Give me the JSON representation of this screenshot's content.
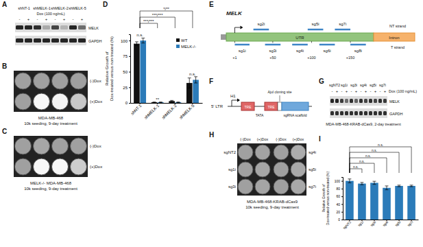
{
  "panels": {
    "A": {
      "letter": "A",
      "lanes": [
        "shNT-1",
        "shMELK-1",
        "shMELK-2",
        "shMELK-5"
      ],
      "dox_label": "Dox (100 ng/mL)",
      "dox": [
        "-",
        "+"
      ],
      "bands": [
        {
          "name": "MELK",
          "intensity": [
            0.9,
            0.9,
            0.85,
            0.25,
            0.75,
            0.2,
            0.9,
            0.55
          ]
        },
        {
          "name": "GAPDH",
          "intensity": [
            0.9,
            0.9,
            0.9,
            0.9,
            0.9,
            0.9,
            0.9,
            0.9
          ]
        }
      ]
    },
    "B": {
      "letter": "B",
      "rows": [
        "(-)Dox",
        "(+)Dox"
      ],
      "density": [
        [
          0.8,
          0.8,
          0.8,
          0.8
        ],
        [
          0.8,
          0.02,
          0.05,
          0.45
        ]
      ],
      "caption": [
        "MDA-MB-468",
        "10k seeding, 9-day treatment"
      ]
    },
    "C": {
      "letter": "C",
      "rows": [
        "(-)Dox",
        "(+)Dox"
      ],
      "density": [
        [
          0.8,
          0.75,
          0.8,
          0.8
        ],
        [
          0.8,
          0.02,
          0.03,
          0.4
        ]
      ],
      "caption": [
        "MELK-/- MDA-MB-468",
        "10k seeding, 9-day treatment"
      ]
    },
    "E": {
      "letter": "E",
      "gene": "MELK",
      "regions": [
        "UTR",
        "Intron"
      ],
      "strands": [
        "NT strand",
        "T strand"
      ],
      "xlim": [
        -10,
        180
      ],
      "ticks": [
        {
          "value": 1,
          "label": "+1"
        },
        {
          "value": 50,
          "label": "+50"
        },
        {
          "value": 100,
          "label": "+100"
        },
        {
          "value": 150,
          "label": "+150"
        }
      ],
      "nt_strand_sgrnas": [
        {
          "name": "sg2i",
          "start": 25,
          "end": 45
        },
        {
          "name": "sg5i",
          "start": 95,
          "end": 115
        },
        {
          "name": "sg7i",
          "start": 130,
          "end": 150
        }
      ],
      "t_strand_sgrnas": [
        {
          "name": "sg1i",
          "start": 1,
          "end": 20
        },
        {
          "name": "sg3i",
          "start": 40,
          "end": 60
        },
        {
          "name": "sg4i",
          "start": 75,
          "end": 95
        },
        {
          "name": "sg6i",
          "start": 110,
          "end": 130
        },
        {
          "name": "sg8i",
          "start": 150,
          "end": 170
        }
      ]
    },
    "F": {
      "letter": "F",
      "parts": {
        "ltr": "5' LTR",
        "promoter": "H1",
        "tre": "TRE",
        "tata": "TATA",
        "site": "AjuI cloning site",
        "scaffold": "sgRNA scaffold"
      }
    },
    "G": {
      "letter": "G",
      "lanes": [
        "sgNT2",
        "sg1i",
        "sg3i",
        "sg4i",
        "sg5i",
        "sg7i"
      ],
      "dox_label": "Dox (100 ng/mL)",
      "dox": [
        "-",
        "+"
      ],
      "bands": [
        {
          "name": "MELK",
          "intensity": [
            0.9,
            0.9,
            0.8,
            0.55,
            0.85,
            0.6,
            0.85,
            0.75,
            0.85,
            0.75,
            0.85,
            0.8
          ]
        },
        {
          "name": "GAPDH",
          "intensity": [
            0.85,
            0.85,
            0.85,
            0.85,
            0.85,
            0.85,
            0.85,
            0.85,
            0.85,
            0.85,
            0.85,
            0.85
          ]
        }
      ],
      "caption": "MDA-MB-468-KRAB-dCas9, 2-day treatment"
    },
    "H": {
      "letter": "H",
      "columns": [
        "(-)Dox",
        "(+)Dox",
        "(-)Dox",
        "(+)Dox"
      ],
      "rows_left": [
        "sgNT2",
        "sg1i",
        "sg3i"
      ],
      "rows_right": [
        "sg4i",
        "sg5i",
        "sg7i"
      ],
      "density": [
        [
          0.8,
          0.78,
          0.8,
          0.7
        ],
        [
          0.8,
          0.75,
          0.8,
          0.72
        ],
        [
          0.8,
          0.76,
          0.8,
          0.72
        ]
      ],
      "caption": [
        "MDA-MB-468-KRAB-dCas9",
        "10k seeding, 9-day treatment"
      ]
    }
  },
  "chart_data": [
    {
      "panel": "D",
      "type": "bar",
      "ylabel": [
        "Relative Growth of",
        "Dox-treated versus non-treated (%)"
      ],
      "categories": [
        "shNT-1",
        "shMELK-1",
        "shMELK-2",
        "shMELK-5"
      ],
      "series": [
        {
          "name": "WT",
          "color": "#111111",
          "values": [
            95,
            1,
            3,
            32
          ],
          "errors": [
            3,
            0.5,
            1,
            8
          ]
        },
        {
          "name": "MELK-/-",
          "color": "#2b7bb9",
          "values": [
            100,
            1,
            1,
            37
          ],
          "errors": [
            4,
            0.5,
            0.5,
            5
          ]
        }
      ],
      "ylim": [
        0,
        110
      ],
      "yticks": [
        0,
        25,
        50,
        75,
        100
      ],
      "legend": "upper right",
      "annotations": [
        {
          "text": "n.s.",
          "category": "shNT-1"
        },
        {
          "text": "**",
          "category": "shMELK-1"
        },
        {
          "text": "n.s.",
          "category": "shMELK-5"
        }
      ],
      "brackets": [
        {
          "text": "***/***",
          "from": "shNT-1",
          "to": "shMELK-1"
        },
        {
          "text": "***/***",
          "from": "shNT-1",
          "to": "shMELK-2"
        },
        {
          "text": "*/**",
          "from": "shNT-1",
          "to": "shMELK-5"
        }
      ]
    },
    {
      "panel": "I",
      "type": "bar",
      "ylabel": [
        "Relative Growth of",
        "Dox-treated versus non-treated (%)"
      ],
      "categories": [
        "sgNT2",
        "sg1i",
        "sg3i",
        "sg4i",
        "sg5i",
        "sg7i"
      ],
      "series": [
        {
          "color": "#2b7bb9",
          "values": [
            100,
            93,
            95,
            82,
            87,
            87
          ],
          "errors": [
            5,
            3,
            4,
            5,
            2,
            2
          ]
        }
      ],
      "ylim": [
        0,
        110
      ],
      "yticks": [
        0,
        20,
        40,
        60,
        80,
        100
      ],
      "brackets": [
        {
          "text": "n.s.",
          "from": "sgNT2",
          "to": "sg1i"
        },
        {
          "text": "n.s.",
          "from": "sgNT2",
          "to": "sg3i"
        },
        {
          "text": "n.s.",
          "from": "sgNT2",
          "to": "sg4i"
        },
        {
          "text": "n.s.",
          "from": "sgNT2",
          "to": "sg5i"
        },
        {
          "text": "n.s.",
          "from": "sgNT2",
          "to": "sg7i"
        }
      ]
    }
  ]
}
